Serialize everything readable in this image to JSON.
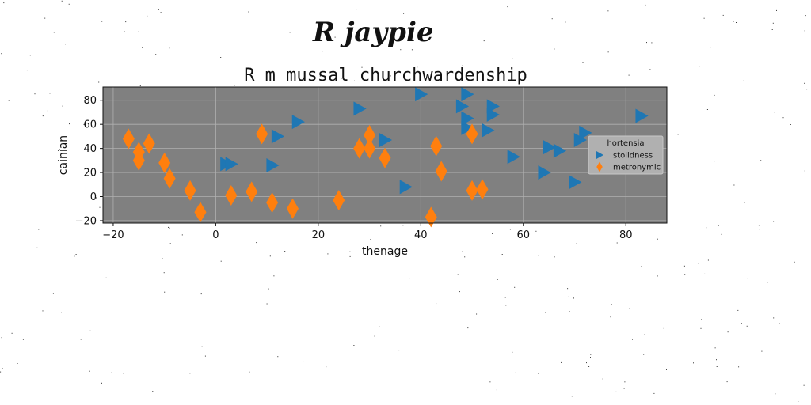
{
  "signature": "R jaypie",
  "chart_data": {
    "type": "scatter",
    "title": "R m mussal churchwardenship",
    "xlabel": "thenage",
    "ylabel": "cainian",
    "xlim": [
      -22,
      88
    ],
    "ylim": [
      -22,
      91
    ],
    "xticks": [
      -20,
      0,
      20,
      40,
      60,
      80
    ],
    "yticks": [
      -20,
      0,
      20,
      40,
      60,
      80
    ],
    "grid": true,
    "plot_background": "#808080",
    "legend": {
      "title": "hortensia",
      "placement": "right"
    },
    "series": [
      {
        "name": "stolidness",
        "marker": "triangle-right",
        "color": "#1f77b4",
        "points": [
          [
            2,
            27
          ],
          [
            3,
            27
          ],
          [
            11,
            26
          ],
          [
            12,
            50
          ],
          [
            16,
            62
          ],
          [
            28,
            73
          ],
          [
            33,
            47
          ],
          [
            37,
            8
          ],
          [
            40,
            85
          ],
          [
            48,
            75
          ],
          [
            49,
            85
          ],
          [
            49,
            65
          ],
          [
            49,
            57
          ],
          [
            54,
            75
          ],
          [
            54,
            68
          ],
          [
            53,
            55
          ],
          [
            58,
            33
          ],
          [
            64,
            20
          ],
          [
            65,
            41
          ],
          [
            67,
            38
          ],
          [
            70,
            12
          ],
          [
            71,
            47
          ],
          [
            72,
            53
          ],
          [
            83,
            67
          ]
        ]
      },
      {
        "name": "metronymic",
        "marker": "thin-diamond",
        "color": "#ff7f0e",
        "points": [
          [
            -17,
            48
          ],
          [
            -15,
            37
          ],
          [
            -15,
            30
          ],
          [
            -13,
            44
          ],
          [
            -10,
            28
          ],
          [
            -9,
            15
          ],
          [
            -5,
            5
          ],
          [
            -3,
            -13
          ],
          [
            3,
            1
          ],
          [
            7,
            4
          ],
          [
            9,
            52
          ],
          [
            11,
            -5
          ],
          [
            15,
            -10
          ],
          [
            24,
            -3
          ],
          [
            28,
            40
          ],
          [
            30,
            40
          ],
          [
            30,
            51
          ],
          [
            33,
            32
          ],
          [
            42,
            -17
          ],
          [
            43,
            42
          ],
          [
            44,
            21
          ],
          [
            50,
            52
          ],
          [
            50,
            5
          ],
          [
            52,
            6
          ]
        ]
      }
    ]
  }
}
